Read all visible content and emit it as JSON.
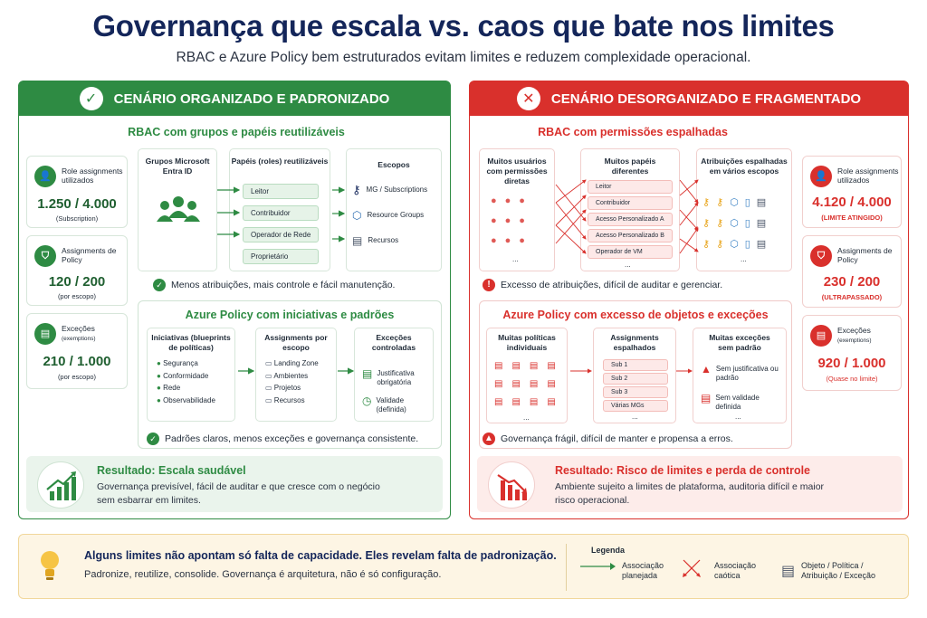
{
  "title": "Governança que escala vs. caos que bate nos limites",
  "subtitle": "RBAC e Azure Policy bem estruturados evitam limites e reduzem complexidade operacional.",
  "colors": {
    "good": "#2e8b43",
    "bad": "#d9302c",
    "navy": "#14265a",
    "note_bg": "#fdf5e4"
  },
  "left": {
    "header": "CENÁRIO ORGANIZADO E PADRONIZADO",
    "rbac_title": "RBAC com grupos e papéis reutilizáveis",
    "stats": [
      {
        "label": "Role assignments utilizados",
        "value": "1.250 / 4.000",
        "sub": "(Subscription)"
      },
      {
        "label": "Assignments de Policy",
        "value": "120 / 200",
        "sub": "(por escopo)"
      },
      {
        "label": "Exceções",
        "label_small": "(exemptions)",
        "value": "210 / 1.000",
        "sub": "(por escopo)"
      }
    ],
    "groups_title": "Grupos Microsoft Entra ID",
    "roles_title": "Papéis (roles) reutilizáveis",
    "roles": [
      "Leitor",
      "Contribuidor",
      "Operador de Rede",
      "Proprietário"
    ],
    "scopes_title": "Escopos",
    "scopes": [
      "MG / Subscriptions",
      "Resource Groups",
      "Recursos"
    ],
    "rbac_note": "Menos atribuições, mais controle e fácil manutenção.",
    "policy_title": "Azure Policy com iniciativas e padrões",
    "initiatives_title": "Iniciativas (blueprints de políticas)",
    "initiatives": [
      "Segurança",
      "Conformidade",
      "Rede",
      "Observabilidade"
    ],
    "assign_title": "Assignments por escopo",
    "assigns": [
      "Landing Zone",
      "Ambientes",
      "Projetos",
      "Recursos"
    ],
    "exc_title": "Exceções controladas",
    "exc_items": [
      "Justificativa obrigatória",
      "Validade (definida)"
    ],
    "policy_note": "Padrões claros, menos exceções e governança consistente.",
    "result_title": "Resultado: Escala saudável",
    "result_text": "Governança previsível, fácil de auditar e que cresce com o negócio sem esbarrar em limites."
  },
  "right": {
    "header": "CENÁRIO DESORGANIZADO E FRAGMENTADO",
    "rbac_title": "RBAC com permissões espalhadas",
    "users_title": "Muitos usuários com permissões diretas",
    "roles_title": "Muitos papéis diferentes",
    "roles": [
      "Leitor",
      "Contribuidor",
      "Acesso Personalizado A",
      "Acesso Personalizado B",
      "Operador de VM"
    ],
    "attr_title": "Atribuições espalhadas em vários escopos",
    "ellipsis": "...",
    "rbac_note": "Excesso de atribuições, difícil de auditar e gerenciar.",
    "policy_title": "Azure Policy com excesso de objetos e exceções",
    "policies_title": "Muitas políticas individuais",
    "assign_title": "Assignments espalhados",
    "assigns": [
      "Sub 1",
      "Sub 2",
      "Sub 3",
      "Várias MGs"
    ],
    "exc_title": "Muitas exceções sem padrão",
    "exc_items": [
      "Sem justificativa ou padrão",
      "Sem validade definida"
    ],
    "policy_note": "Governança frágil, difícil de manter e propensa a erros.",
    "stats": [
      {
        "label": "Role assignments utilizados",
        "value": "4.120 / 4.000",
        "sub": "(LIMITE ATINGIDO)"
      },
      {
        "label": "Assignments de Policy",
        "value": "230 / 200",
        "sub": "(ULTRAPASSADO)"
      },
      {
        "label": "Exceções",
        "label_small": "(exemptions)",
        "value": "920 / 1.000",
        "sub": "(Quase no limite)"
      }
    ],
    "result_title": "Resultado: Risco de limites e perda de controle",
    "result_text": "Ambiente sujeito a limites de plataforma, auditoria difícil e maior risco operacional."
  },
  "footer": {
    "headline": "Alguns limites não apontam só falta de capacidade. Eles revelam falta de padronização.",
    "text": "Padronize, reutilize, consolide. Governança é arquitetura, não é só configuração.",
    "legend_title": "Legenda",
    "legend": [
      "Associação planejada",
      "Associação caótica",
      "Objeto / Política / Atribuição / Exceção"
    ]
  }
}
